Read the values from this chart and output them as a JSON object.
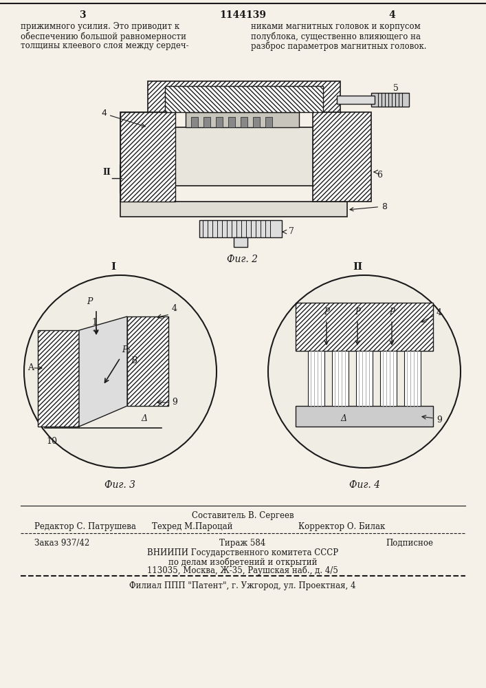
{
  "patent_number": "1144139",
  "page_left": "3",
  "page_right": "4",
  "text_left": "прижимного усилия. Это приводит к\nобеспечению большой равномерности\nтолщины клеевого слоя между сердеч-",
  "text_right": "никами магнитных головок и корпусом\nполублока, существенно влияющего на\nразброс параметров магнитных головок.",
  "fig2_caption": "Фиг. 2",
  "fig3_caption": "Фиг. 3",
  "fig4_caption": "Фиг. 4",
  "footer_editor": "Редактор С. Патрушева",
  "footer_composer": "Составитель В. Сергеев",
  "footer_techred": "Техред М.Пароцай",
  "footer_corrector": "Корректор О. Билак",
  "footer_order": "Заказ 937/42",
  "footer_tirazh": "Тираж 584",
  "footer_podpisnoe": "Подписное",
  "footer_vniipи": "ВНИИПИ Государственного комитета СССР",
  "footer_po_delam": "по делам изобретений и открытий",
  "footer_address": "113035, Москва, Ж-35, Раушская наб., д. 4/5",
  "footer_filial": "Филиал ППП \"Патент\", г. Ужгород, ул. Проектная, 4",
  "bg_color": "#f5f0e8",
  "line_color": "#1a1a1a",
  "hatch_color": "#333333",
  "text_color": "#1a1a1a"
}
